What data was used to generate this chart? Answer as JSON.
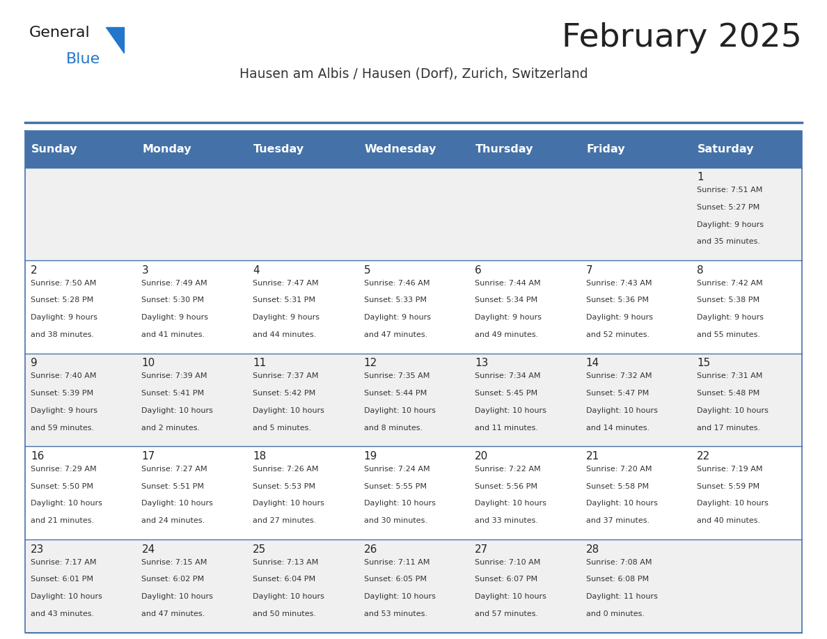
{
  "title": "February 2025",
  "subtitle": "Hausen am Albis / Hausen (Dorf), Zurich, Switzerland",
  "header_bg_color": "#4472a8",
  "header_text_color": "#ffffff",
  "day_names": [
    "Sunday",
    "Monday",
    "Tuesday",
    "Wednesday",
    "Thursday",
    "Friday",
    "Saturday"
  ],
  "title_color": "#222222",
  "subtitle_color": "#333333",
  "cell_bg_even": "#f0f0f0",
  "cell_bg_odd": "#ffffff",
  "cell_border_color": "#4472a8",
  "day_num_color": "#222222",
  "info_color": "#333333",
  "logo_general_color": "#1a1a1a",
  "logo_blue_color": "#2277cc",
  "calendar_data": [
    [
      {
        "day": null,
        "info": ""
      },
      {
        "day": null,
        "info": ""
      },
      {
        "day": null,
        "info": ""
      },
      {
        "day": null,
        "info": ""
      },
      {
        "day": null,
        "info": ""
      },
      {
        "day": null,
        "info": ""
      },
      {
        "day": 1,
        "info": "Sunrise: 7:51 AM\nSunset: 5:27 PM\nDaylight: 9 hours\nand 35 minutes."
      }
    ],
    [
      {
        "day": 2,
        "info": "Sunrise: 7:50 AM\nSunset: 5:28 PM\nDaylight: 9 hours\nand 38 minutes."
      },
      {
        "day": 3,
        "info": "Sunrise: 7:49 AM\nSunset: 5:30 PM\nDaylight: 9 hours\nand 41 minutes."
      },
      {
        "day": 4,
        "info": "Sunrise: 7:47 AM\nSunset: 5:31 PM\nDaylight: 9 hours\nand 44 minutes."
      },
      {
        "day": 5,
        "info": "Sunrise: 7:46 AM\nSunset: 5:33 PM\nDaylight: 9 hours\nand 47 minutes."
      },
      {
        "day": 6,
        "info": "Sunrise: 7:44 AM\nSunset: 5:34 PM\nDaylight: 9 hours\nand 49 minutes."
      },
      {
        "day": 7,
        "info": "Sunrise: 7:43 AM\nSunset: 5:36 PM\nDaylight: 9 hours\nand 52 minutes."
      },
      {
        "day": 8,
        "info": "Sunrise: 7:42 AM\nSunset: 5:38 PM\nDaylight: 9 hours\nand 55 minutes."
      }
    ],
    [
      {
        "day": 9,
        "info": "Sunrise: 7:40 AM\nSunset: 5:39 PM\nDaylight: 9 hours\nand 59 minutes."
      },
      {
        "day": 10,
        "info": "Sunrise: 7:39 AM\nSunset: 5:41 PM\nDaylight: 10 hours\nand 2 minutes."
      },
      {
        "day": 11,
        "info": "Sunrise: 7:37 AM\nSunset: 5:42 PM\nDaylight: 10 hours\nand 5 minutes."
      },
      {
        "day": 12,
        "info": "Sunrise: 7:35 AM\nSunset: 5:44 PM\nDaylight: 10 hours\nand 8 minutes."
      },
      {
        "day": 13,
        "info": "Sunrise: 7:34 AM\nSunset: 5:45 PM\nDaylight: 10 hours\nand 11 minutes."
      },
      {
        "day": 14,
        "info": "Sunrise: 7:32 AM\nSunset: 5:47 PM\nDaylight: 10 hours\nand 14 minutes."
      },
      {
        "day": 15,
        "info": "Sunrise: 7:31 AM\nSunset: 5:48 PM\nDaylight: 10 hours\nand 17 minutes."
      }
    ],
    [
      {
        "day": 16,
        "info": "Sunrise: 7:29 AM\nSunset: 5:50 PM\nDaylight: 10 hours\nand 21 minutes."
      },
      {
        "day": 17,
        "info": "Sunrise: 7:27 AM\nSunset: 5:51 PM\nDaylight: 10 hours\nand 24 minutes."
      },
      {
        "day": 18,
        "info": "Sunrise: 7:26 AM\nSunset: 5:53 PM\nDaylight: 10 hours\nand 27 minutes."
      },
      {
        "day": 19,
        "info": "Sunrise: 7:24 AM\nSunset: 5:55 PM\nDaylight: 10 hours\nand 30 minutes."
      },
      {
        "day": 20,
        "info": "Sunrise: 7:22 AM\nSunset: 5:56 PM\nDaylight: 10 hours\nand 33 minutes."
      },
      {
        "day": 21,
        "info": "Sunrise: 7:20 AM\nSunset: 5:58 PM\nDaylight: 10 hours\nand 37 minutes."
      },
      {
        "day": 22,
        "info": "Sunrise: 7:19 AM\nSunset: 5:59 PM\nDaylight: 10 hours\nand 40 minutes."
      }
    ],
    [
      {
        "day": 23,
        "info": "Sunrise: 7:17 AM\nSunset: 6:01 PM\nDaylight: 10 hours\nand 43 minutes."
      },
      {
        "day": 24,
        "info": "Sunrise: 7:15 AM\nSunset: 6:02 PM\nDaylight: 10 hours\nand 47 minutes."
      },
      {
        "day": 25,
        "info": "Sunrise: 7:13 AM\nSunset: 6:04 PM\nDaylight: 10 hours\nand 50 minutes."
      },
      {
        "day": 26,
        "info": "Sunrise: 7:11 AM\nSunset: 6:05 PM\nDaylight: 10 hours\nand 53 minutes."
      },
      {
        "day": 27,
        "info": "Sunrise: 7:10 AM\nSunset: 6:07 PM\nDaylight: 10 hours\nand 57 minutes."
      },
      {
        "day": 28,
        "info": "Sunrise: 7:08 AM\nSunset: 6:08 PM\nDaylight: 11 hours\nand 0 minutes."
      },
      {
        "day": null,
        "info": ""
      }
    ]
  ]
}
